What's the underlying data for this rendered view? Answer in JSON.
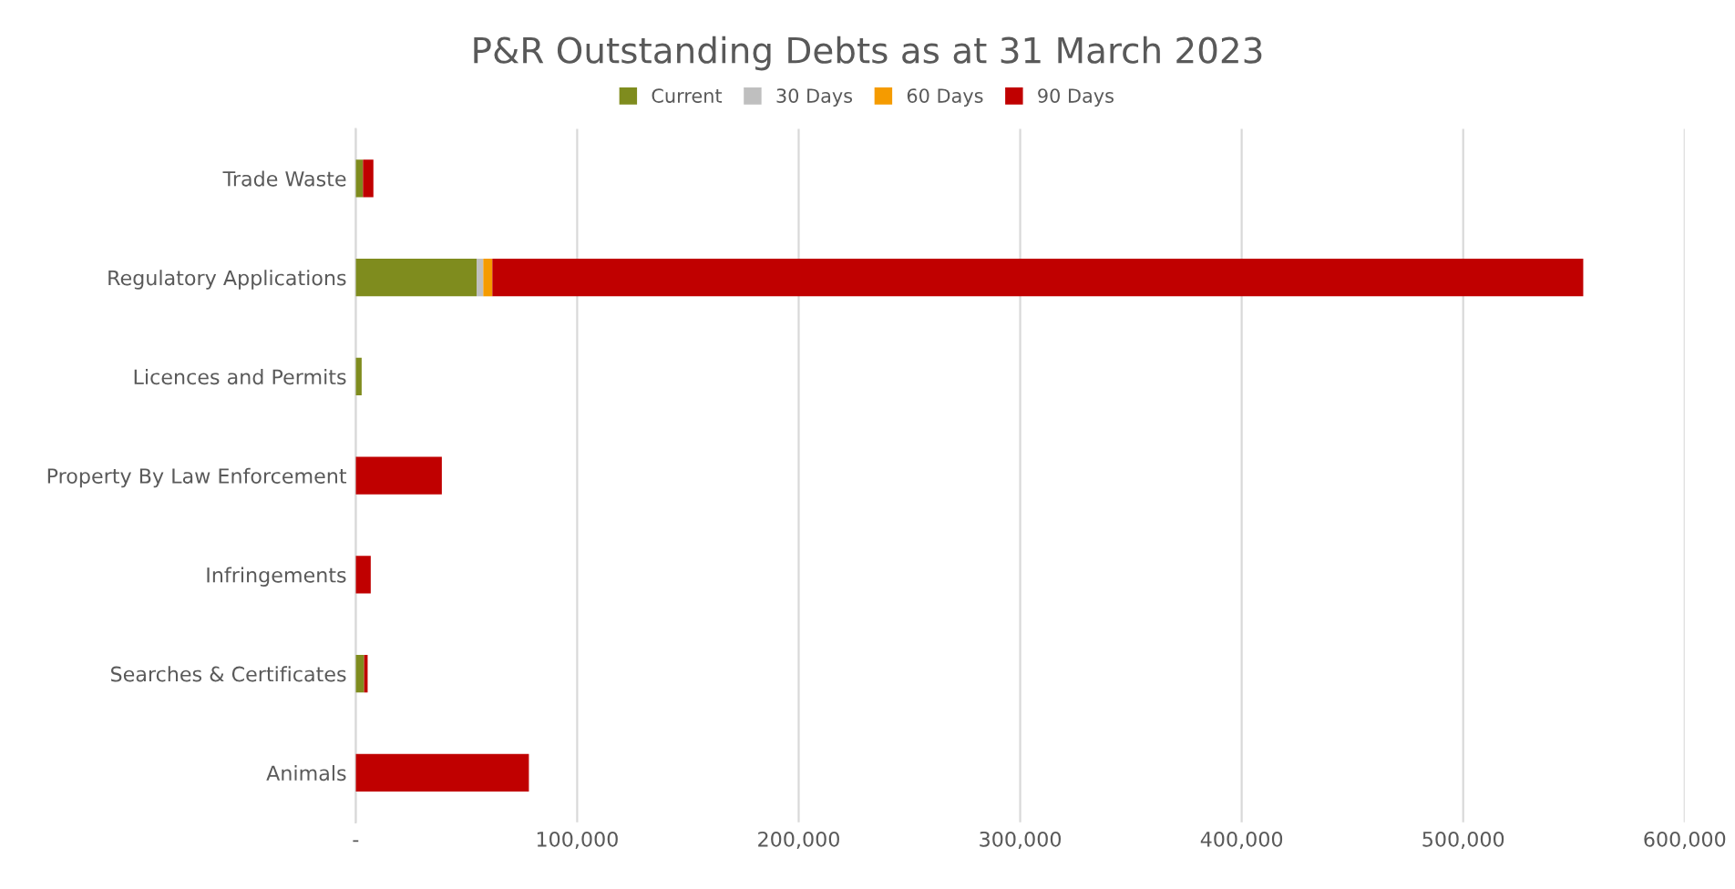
{
  "chart_data": {
    "type": "bar",
    "orientation": "horizontal",
    "stacked": true,
    "title": "P&R Outstanding Debts as at 31 March 2023",
    "categories": [
      "Trade Waste",
      "Regulatory Applications",
      "Licences and Permits",
      "Property By Law Enforcement",
      "Infringements",
      "Searches & Certificates",
      "Animals"
    ],
    "series": [
      {
        "name": "Current",
        "color": "#7f8c1e",
        "values": [
          3300,
          54600,
          2700,
          0,
          0,
          3800,
          0
        ]
      },
      {
        "name": "30 Days",
        "color": "#bfbfbf",
        "values": [
          0,
          3000,
          0,
          0,
          0,
          0,
          0
        ]
      },
      {
        "name": "60 Days",
        "color": "#f59b00",
        "values": [
          0,
          4100,
          0,
          0,
          0,
          0,
          0
        ]
      },
      {
        "name": "90 Days",
        "color": "#c00000",
        "values": [
          4700,
          492500,
          0,
          38900,
          6800,
          1600,
          78200
        ]
      }
    ],
    "xlim": [
      0,
      600000
    ],
    "xticks": [
      {
        "value": 0,
        "label": "-"
      },
      {
        "value": 100000,
        "label": "100,000"
      },
      {
        "value": 200000,
        "label": "200,000"
      },
      {
        "value": 300000,
        "label": "300,000"
      },
      {
        "value": 400000,
        "label": "400,000"
      },
      {
        "value": 500000,
        "label": "500,000"
      },
      {
        "value": 600000,
        "label": "600,000"
      }
    ],
    "grid": "x",
    "legend": "top"
  }
}
